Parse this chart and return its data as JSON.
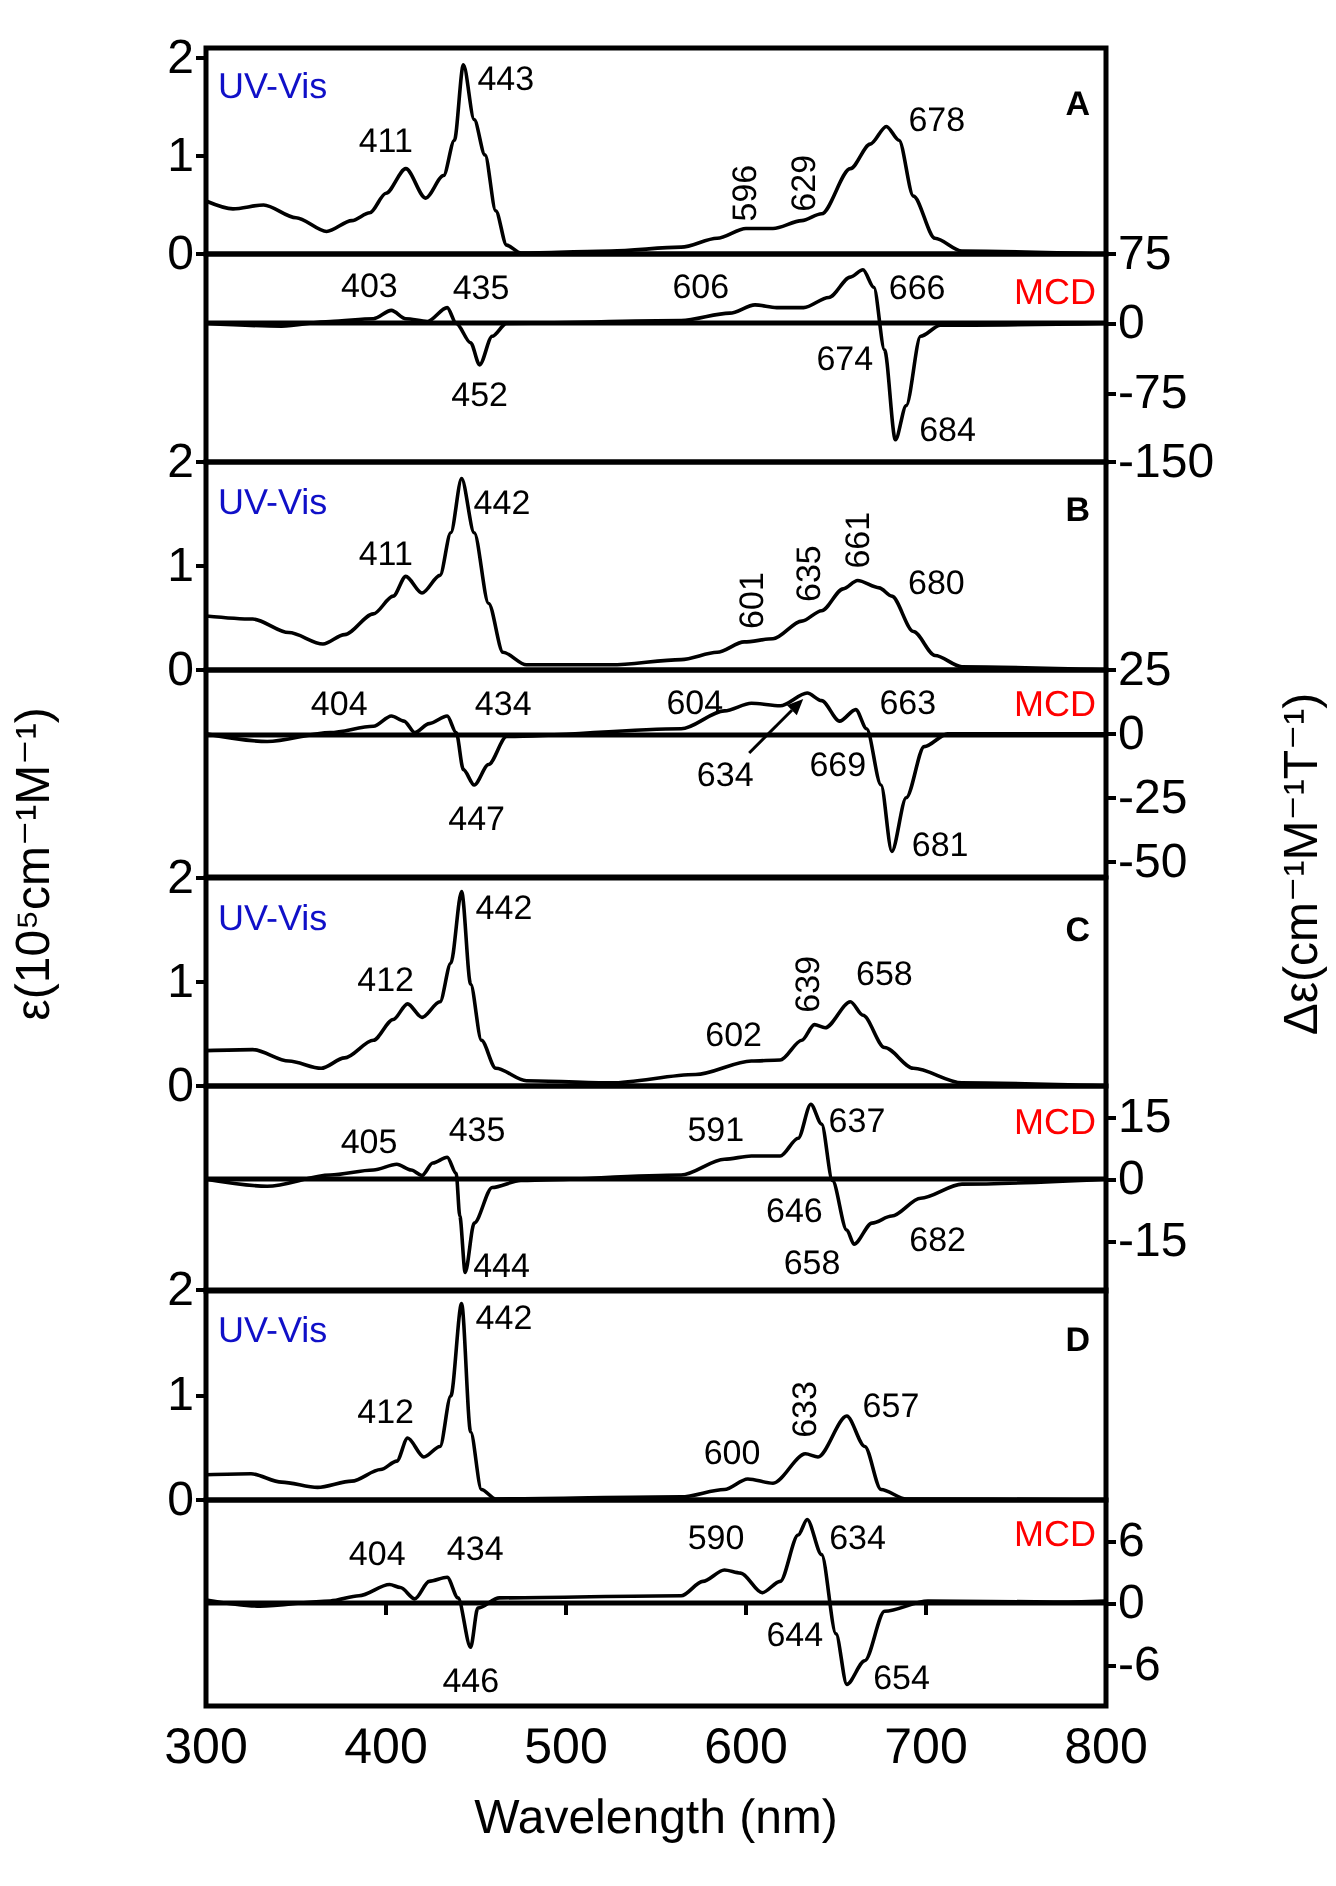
{
  "chart_data": [
    {
      "type": "line",
      "x": [
        300,
        315,
        332,
        350,
        367,
        381,
        391,
        400,
        411,
        422,
        432,
        438,
        443,
        449,
        455,
        461,
        467,
        475,
        525,
        564,
        584,
        600,
        615,
        631,
        642,
        658,
        669,
        678,
        685,
        693,
        705,
        720,
        800
      ],
      "series": [
        {
          "color": "#000000",
          "values": [
            0.54,
            0.46,
            0.5,
            0.37,
            0.23,
            0.34,
            0.42,
            0.62,
            0.87,
            0.57,
            0.8,
            1.16,
            1.93,
            1.37,
            1.01,
            0.44,
            0.09,
            0.01,
            0.03,
            0.07,
            0.16,
            0.26,
            0.26,
            0.34,
            0.41,
            0.87,
            1.12,
            1.3,
            1.16,
            0.59,
            0.16,
            0.03,
            0
          ]
        }
      ],
      "xlim": [
        300,
        800
      ],
      "ylim": [
        0,
        2.1
      ],
      "yticks": [
        0,
        1,
        2
      ],
      "tick_labels": "y",
      "annotations": [
        "UV-Vis",
        "A",
        {
          "text": "411",
          "x": 411,
          "y": 0.87
        },
        {
          "text": "443",
          "x": 443,
          "y": 1.93
        },
        {
          "text": "596",
          "x": 596,
          "y": 0.25
        },
        {
          "text": "629",
          "x": 629,
          "y": 0.33
        },
        {
          "text": "678",
          "x": 678,
          "y": 1.3
        }
      ]
    },
    {
      "type": "line",
      "x": [
        300,
        342,
        369,
        393,
        403,
        411,
        423,
        434,
        439,
        447,
        452,
        459,
        467,
        564,
        591,
        605,
        617,
        632,
        646,
        658,
        665,
        671,
        677,
        683,
        689,
        697,
        708,
        800
      ],
      "series": [
        {
          "color": "#000000",
          "values": [
            0,
            -3,
            2,
            5,
            14,
            5,
            2,
            17,
            0,
            -21,
            -45,
            -14,
            0,
            3,
            11,
            20,
            17,
            17,
            28,
            50,
            58,
            39,
            -29,
            -126,
            -89,
            -14,
            -2,
            0
          ]
        }
      ],
      "xlim": [
        300,
        800
      ],
      "ylim": [
        -150,
        75
      ],
      "yticks": [
        -150,
        -75,
        0,
        75
      ],
      "tick_labels": "y",
      "ref_lines": [
        {
          "axis": "y",
          "value": 0
        }
      ],
      "annotations": [
        "MCD",
        {
          "text": "403",
          "x": 403,
          "y": 14
        },
        {
          "text": "435",
          "x": 435,
          "y": 12
        },
        {
          "text": "606",
          "x": 606,
          "y": 20
        },
        {
          "text": "666",
          "x": 666,
          "y": 58
        },
        {
          "text": "674",
          "x": 674,
          "y": 0
        },
        {
          "text": "452",
          "x": 452,
          "y": -45
        },
        {
          "text": "684",
          "x": 684,
          "y": -126
        }
      ]
    },
    {
      "type": "line",
      "ylabel": "ε(10⁵cm⁻¹M⁻¹)",
      "x": [
        300,
        326,
        346,
        365,
        377,
        393,
        404,
        411,
        420,
        430,
        436,
        442,
        449,
        457,
        465,
        478,
        525,
        564,
        584,
        599,
        615,
        631,
        642,
        654,
        662,
        674,
        681,
        693,
        705,
        720,
        800
      ],
      "series": [
        {
          "color": "#000000",
          "values": [
            0.52,
            0.49,
            0.36,
            0.25,
            0.34,
            0.54,
            0.71,
            0.9,
            0.74,
            0.91,
            1.32,
            1.84,
            1.32,
            0.64,
            0.17,
            0.05,
            0.05,
            0.1,
            0.17,
            0.27,
            0.3,
            0.47,
            0.57,
            0.78,
            0.86,
            0.79,
            0.71,
            0.37,
            0.14,
            0.03,
            0
          ]
        }
      ],
      "xlim": [
        300,
        800
      ],
      "ylim": [
        0,
        2
      ],
      "yticks": [
        0,
        1,
        2
      ],
      "tick_labels": "y",
      "annotations": [
        "UV-Vis",
        "B",
        {
          "text": "411",
          "x": 411,
          "y": 0.9
        },
        {
          "text": "442",
          "x": 442,
          "y": 1.84
        },
        {
          "text": "601",
          "x": 601,
          "y": 0.28
        },
        {
          "text": "635",
          "x": 635,
          "y": 0.5
        },
        {
          "text": "661",
          "x": 661,
          "y": 0.86
        },
        {
          "text": "680",
          "x": 680,
          "y": 0.72
        }
      ]
    },
    {
      "type": "line",
      "ylabel": "Δε(cm⁻¹M⁻¹T⁻¹)",
      "x": [
        300,
        334,
        369,
        393,
        403,
        410,
        416,
        424,
        434,
        439,
        443,
        449,
        457,
        467,
        564,
        588,
        603,
        619,
        634,
        642,
        652,
        661,
        667,
        675,
        681,
        689,
        699,
        712,
        800
      ],
      "series": [
        {
          "color": "#000000",
          "values": [
            0,
            -3,
            0.5,
            3,
            7,
            5,
            0.5,
            4,
            7,
            0.5,
            -14,
            -20,
            -12,
            -1,
            2,
            9,
            12,
            11,
            16,
            13,
            5,
            9.5,
            2,
            -20,
            -46,
            -25,
            -5,
            0,
            0
          ]
        }
      ],
      "xlim": [
        300,
        800
      ],
      "ylim": [
        -56,
        25
      ],
      "yticks": [
        -50,
        -25,
        0,
        25
      ],
      "tick_labels": "y",
      "ref_lines": [
        {
          "axis": "y",
          "value": 0
        }
      ],
      "annotations": [
        "MCD",
        {
          "text": "404",
          "x": 404,
          "y": 7
        },
        {
          "text": "434",
          "x": 434,
          "y": 7
        },
        {
          "text": "604",
          "x": 604,
          "y": 12
        },
        {
          "text": "634",
          "x": 634,
          "y": 16
        },
        {
          "text": "663",
          "x": 663,
          "y": 8
        },
        {
          "text": "669",
          "x": 669,
          "y": -3.5
        },
        {
          "text": "447",
          "x": 447,
          "y": -20
        },
        {
          "text": "681",
          "x": 681,
          "y": -46
        }
      ]
    },
    {
      "type": "line",
      "x": [
        300,
        326,
        346,
        364,
        377,
        393,
        404,
        412,
        420,
        430,
        436,
        442,
        447,
        453,
        461,
        478,
        525,
        572,
        603,
        619,
        631,
        638,
        644,
        658,
        665,
        677,
        693,
        720,
        800
      ],
      "series": [
        {
          "color": "#000000",
          "values": [
            0.34,
            0.35,
            0.24,
            0.17,
            0.27,
            0.44,
            0.64,
            0.79,
            0.66,
            0.81,
            1.18,
            1.87,
            0.98,
            0.44,
            0.17,
            0.05,
            0.03,
            0.11,
            0.24,
            0.25,
            0.44,
            0.59,
            0.56,
            0.81,
            0.68,
            0.37,
            0.17,
            0.03,
            0
          ]
        }
      ],
      "xlim": [
        300,
        800
      ],
      "ylim": [
        0,
        2
      ],
      "yticks": [
        0,
        1,
        2
      ],
      "tick_labels": "y",
      "annotations": [
        "UV-Vis",
        "C",
        {
          "text": "412",
          "x": 412,
          "y": 0.79
        },
        {
          "text": "442",
          "x": 442,
          "y": 1.87
        },
        {
          "text": "602",
          "x": 602,
          "y": 0.24
        },
        {
          "text": "639",
          "x": 639,
          "y": 0.59
        },
        {
          "text": "658",
          "x": 658,
          "y": 0.81
        }
      ]
    },
    {
      "type": "line",
      "x": [
        300,
        334,
        369,
        393,
        406,
        414,
        420,
        426,
        434,
        439,
        441,
        444,
        449,
        459,
        475,
        564,
        588,
        603,
        619,
        629,
        636,
        642,
        648,
        656,
        660,
        670,
        681,
        697,
        720,
        800
      ],
      "series": [
        {
          "color": "#000000",
          "values": [
            0,
            -1.7,
            1,
            2.2,
            3.6,
            2.2,
            0.9,
            3.9,
            5.3,
            1.4,
            -8.9,
            -22.5,
            -10.6,
            -2,
            -0.3,
            1,
            4.8,
            5.6,
            5.6,
            9.9,
            18.1,
            13.3,
            -0.3,
            -12.3,
            -15.7,
            -10.6,
            -8.9,
            -4.6,
            -1.2,
            0
          ]
        }
      ],
      "xlim": [
        300,
        800
      ],
      "ylim": [
        -27,
        22.5
      ],
      "yticks": [
        -15,
        0,
        15
      ],
      "tick_labels": "y",
      "ref_lines": [
        {
          "axis": "y",
          "value": 0
        }
      ],
      "annotations": [
        "MCD",
        {
          "text": "405",
          "x": 405,
          "y": 3.6
        },
        {
          "text": "435",
          "x": 435,
          "y": 5.5
        },
        {
          "text": "591",
          "x": 591,
          "y": 5
        },
        {
          "text": "637",
          "x": 637,
          "y": 18
        },
        {
          "text": "646",
          "x": 646,
          "y": 0
        },
        {
          "text": "658",
          "x": 658,
          "y": -15
        },
        {
          "text": "682",
          "x": 682,
          "y": -8.5
        },
        {
          "text": "444",
          "x": 444,
          "y": -22.5
        }
      ]
    },
    {
      "type": "line",
      "x": [
        300,
        325,
        342,
        362,
        381,
        397,
        406,
        412,
        421,
        430,
        436,
        442,
        447,
        453,
        461,
        564,
        588,
        601,
        615,
        633,
        640,
        656,
        666,
        675,
        689,
        800
      ],
      "series": [
        {
          "color": "#000000",
          "values": [
            0.24,
            0.25,
            0.17,
            0.12,
            0.18,
            0.29,
            0.37,
            0.59,
            0.41,
            0.51,
            0.99,
            1.87,
            0.65,
            0.1,
            0.01,
            0.03,
            0.1,
            0.2,
            0.16,
            0.44,
            0.41,
            0.8,
            0.51,
            0.1,
            0.01,
            0
          ]
        }
      ],
      "xlim": [
        300,
        800
      ],
      "ylim": [
        0,
        2
      ],
      "yticks": [
        0,
        1,
        2
      ],
      "tick_labels": "y",
      "annotations": [
        "UV-Vis",
        "D",
        {
          "text": "412",
          "x": 412,
          "y": 0.59
        },
        {
          "text": "442",
          "x": 442,
          "y": 1.87
        },
        {
          "text": "600",
          "x": 600,
          "y": 0.2
        },
        {
          "text": "633",
          "x": 633,
          "y": 0.44
        },
        {
          "text": "657",
          "x": 657,
          "y": 0.8
        }
      ]
    },
    {
      "type": "line",
      "xlabel": "Wavelength (nm)",
      "x": [
        300,
        330,
        369,
        385,
        402,
        408,
        416,
        424,
        434,
        440,
        447,
        451,
        463,
        564,
        576,
        588,
        597,
        609,
        619,
        629,
        634,
        642,
        650,
        656,
        666,
        677,
        701,
        771,
        800
      ],
      "series": [
        {
          "color": "#000000",
          "values": [
            0.3,
            -0.3,
            0.2,
            0.7,
            1.8,
            1.5,
            0.4,
            2.1,
            2.5,
            0.5,
            -4.3,
            -0.5,
            0.5,
            0.7,
            2.1,
            3.2,
            2.9,
            1,
            2.1,
            6.6,
            8.1,
            4.7,
            -3,
            -7.9,
            -5.6,
            -0.8,
            0.2,
            0.1,
            0.2
          ]
        }
      ],
      "xlim": [
        300,
        800
      ],
      "xticks": [
        300,
        400,
        500,
        600,
        700,
        800
      ],
      "ylim": [
        -10,
        10
      ],
      "yticks": [
        -6,
        0,
        6
      ],
      "ref_lines": [
        {
          "axis": "y",
          "value": 0
        }
      ],
      "annotations": [
        "MCD",
        {
          "text": "404",
          "x": 404,
          "y": 1.8
        },
        {
          "text": "434",
          "x": 434,
          "y": 2.5
        },
        {
          "text": "590",
          "x": 590,
          "y": 3.2
        },
        {
          "text": "634",
          "x": 634,
          "y": 8.1
        },
        {
          "text": "644",
          "x": 644,
          "y": 0
        },
        {
          "text": "654",
          "x": 654,
          "y": -7.9
        },
        {
          "text": "446",
          "x": 446,
          "y": -4.3
        }
      ]
    }
  ]
}
